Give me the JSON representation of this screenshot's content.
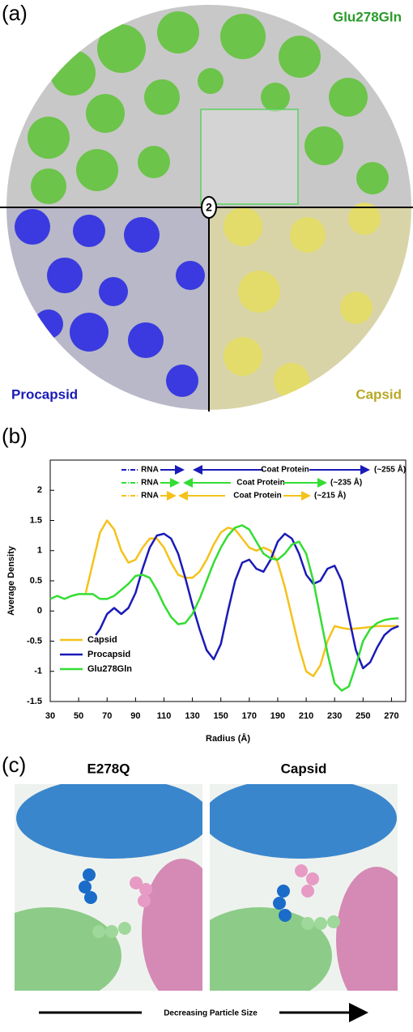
{
  "panel_a": {
    "label": "(a)",
    "top_label": "Glu278Gln",
    "left_label": "Procapsid",
    "right_label": "Capsid",
    "axis_symbol": "2"
  },
  "chart_data": {
    "label": "(b)",
    "type": "line",
    "x_label": "Radius (Å)",
    "y_label": "Average Density",
    "xlim": [
      30,
      280
    ],
    "ylim": [
      -1.5,
      2.5
    ],
    "xticks": [
      30,
      50,
      70,
      90,
      110,
      130,
      150,
      170,
      190,
      210,
      230,
      250,
      270
    ],
    "yticks": [
      -1.5,
      -1,
      -0.5,
      0,
      0.5,
      1,
      1.5,
      2
    ],
    "legend": "lower left",
    "annotations": [
      {
        "color": "#1a1ab8",
        "rna": "RNA",
        "coat": "Coat Protein",
        "size": "(~255 Å)"
      },
      {
        "color": "#33dd33",
        "rna": "RNA",
        "coat": "Coat Protein",
        "size": "(~235 Å)"
      },
      {
        "color": "#f5c21b",
        "rna": "RNA",
        "coat": "Coat Protein",
        "size": "(~215 Å)"
      }
    ],
    "series": [
      {
        "name": "Capsid",
        "color": "#f5c21b",
        "x": [
          55,
          60,
          65,
          70,
          75,
          80,
          85,
          90,
          95,
          100,
          105,
          110,
          115,
          120,
          125,
          130,
          135,
          140,
          145,
          150,
          155,
          160,
          165,
          170,
          175,
          180,
          185,
          190,
          195,
          200,
          205,
          210,
          215,
          220,
          225,
          230,
          235,
          240,
          250,
          260,
          275
        ],
        "values": [
          0.3,
          0.8,
          1.3,
          1.5,
          1.35,
          1.0,
          0.8,
          0.85,
          1.05,
          1.2,
          1.2,
          1.05,
          0.8,
          0.6,
          0.55,
          0.55,
          0.65,
          0.85,
          1.1,
          1.3,
          1.38,
          1.35,
          1.2,
          1.05,
          1.0,
          1.05,
          1.0,
          0.8,
          0.4,
          -0.1,
          -0.6,
          -1.0,
          -1.08,
          -0.9,
          -0.5,
          -0.25,
          -0.28,
          -0.3,
          -0.28,
          -0.25,
          -0.25
        ]
      },
      {
        "name": "Procapsid",
        "color": "#1a1ab8",
        "x": [
          62,
          65,
          70,
          75,
          80,
          85,
          90,
          95,
          100,
          105,
          110,
          115,
          120,
          125,
          130,
          135,
          140,
          145,
          150,
          155,
          160,
          165,
          170,
          175,
          180,
          185,
          190,
          195,
          200,
          205,
          210,
          215,
          220,
          225,
          230,
          235,
          240,
          245,
          250,
          255,
          260,
          265,
          270,
          275
        ],
        "values": [
          -0.4,
          -0.3,
          -0.05,
          0.05,
          -0.05,
          0.05,
          0.3,
          0.7,
          1.05,
          1.25,
          1.28,
          1.2,
          0.95,
          0.55,
          0.1,
          -0.3,
          -0.65,
          -0.8,
          -0.55,
          0.0,
          0.5,
          0.8,
          0.85,
          0.7,
          0.65,
          0.85,
          1.15,
          1.28,
          1.2,
          0.95,
          0.6,
          0.45,
          0.5,
          0.7,
          0.75,
          0.5,
          -0.1,
          -0.65,
          -0.95,
          -0.85,
          -0.6,
          -0.4,
          -0.3,
          -0.25
        ]
      },
      {
        "name": "Glu278Gln",
        "color": "#33dd33",
        "x": [
          30,
          35,
          40,
          45,
          50,
          55,
          60,
          65,
          70,
          75,
          80,
          85,
          90,
          95,
          100,
          105,
          110,
          115,
          120,
          125,
          130,
          135,
          140,
          145,
          150,
          155,
          160,
          165,
          170,
          175,
          180,
          185,
          190,
          195,
          200,
          205,
          210,
          215,
          220,
          225,
          230,
          235,
          240,
          245,
          250,
          255,
          260,
          265,
          270,
          275
        ],
        "values": [
          0.2,
          0.25,
          0.2,
          0.25,
          0.28,
          0.28,
          0.28,
          0.2,
          0.2,
          0.25,
          0.35,
          0.45,
          0.58,
          0.6,
          0.55,
          0.35,
          0.1,
          -0.1,
          -0.22,
          -0.2,
          -0.05,
          0.2,
          0.5,
          0.8,
          1.05,
          1.25,
          1.38,
          1.42,
          1.35,
          1.15,
          0.95,
          0.87,
          0.85,
          0.95,
          1.1,
          1.15,
          0.95,
          0.5,
          -0.1,
          -0.7,
          -1.2,
          -1.32,
          -1.25,
          -0.9,
          -0.5,
          -0.3,
          -0.2,
          -0.15,
          -0.13,
          -0.12
        ]
      }
    ]
  },
  "panel_c": {
    "label": "(c)",
    "left_title": "E278Q",
    "right_title": "Capsid",
    "arrow_text": "Decreasing Particle Size"
  }
}
